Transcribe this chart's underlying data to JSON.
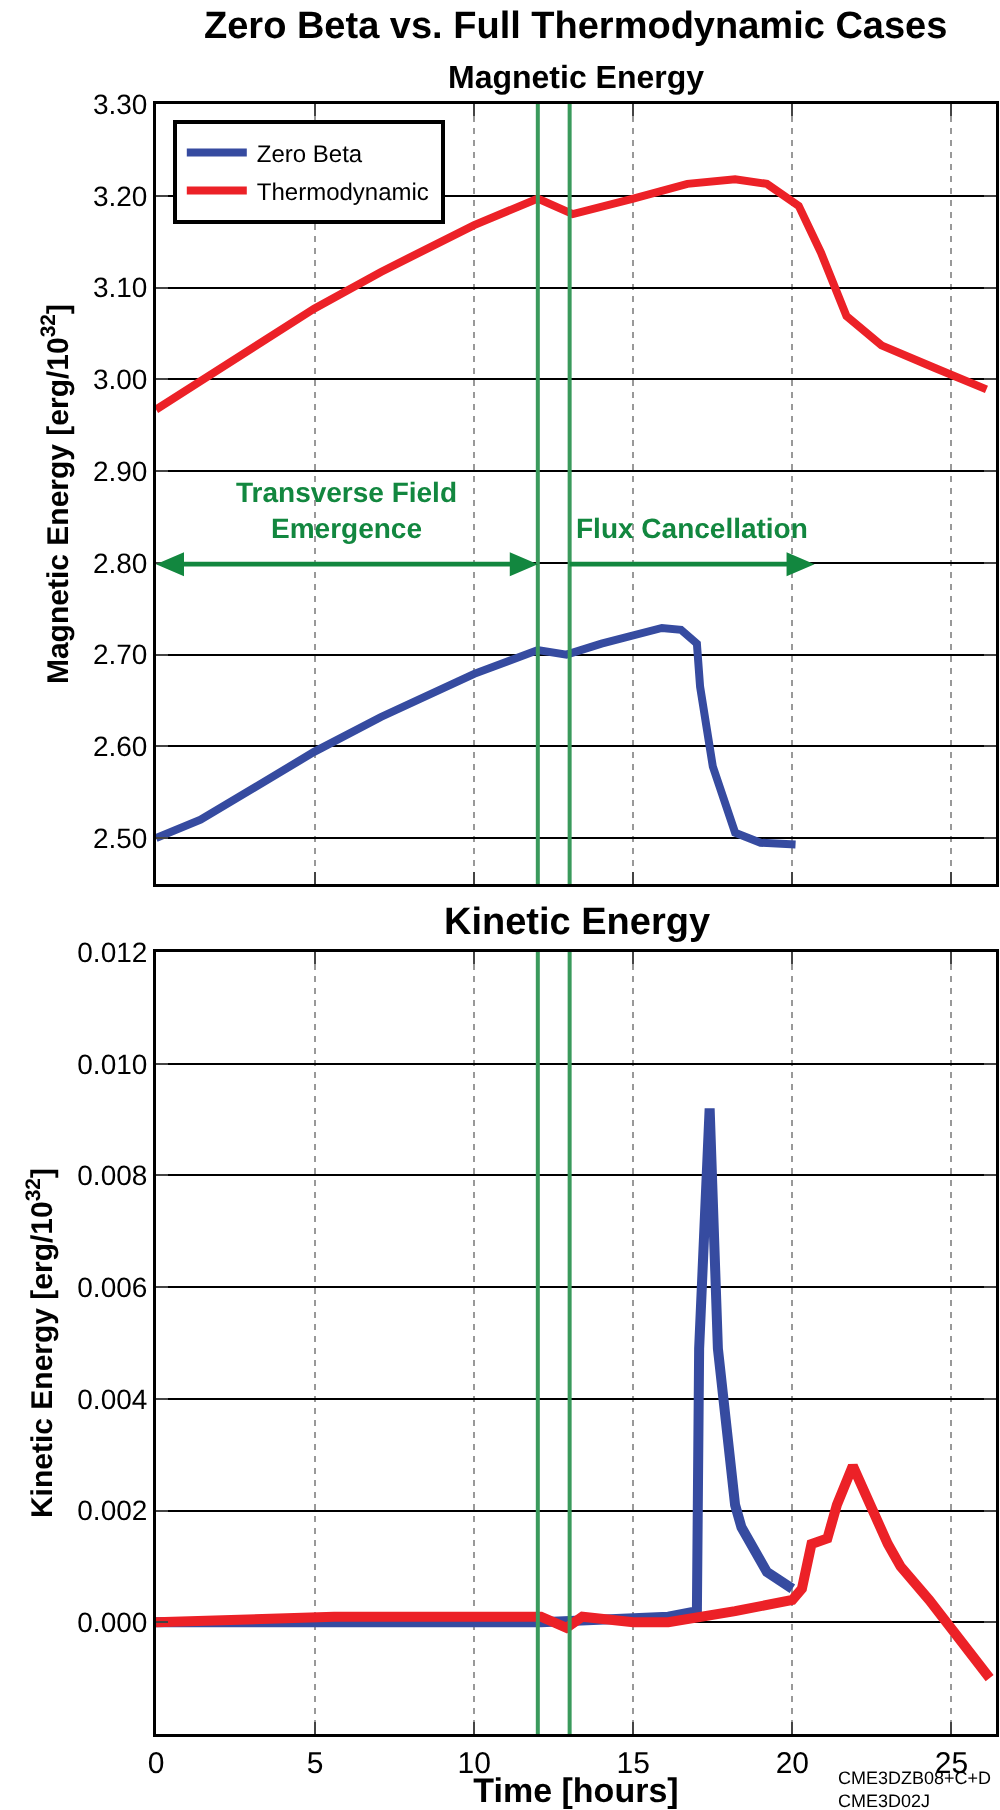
{
  "chart_data": [
    {
      "type": "line",
      "title": "Zero Beta vs. Full Thermodynamic Cases",
      "subtitle": "Magnetic Energy",
      "ylabel": "Magnetic Energy [erg/10$^{32}$]",
      "xlim": [
        0,
        26.4
      ],
      "xticks": [
        0,
        5,
        10,
        15,
        20,
        25
      ],
      "ylim": [
        2.45,
        3.3
      ],
      "yticks": [
        {
          "value": 2.5,
          "label": "2.50"
        },
        {
          "value": 2.6,
          "label": "2.60"
        },
        {
          "value": 2.7,
          "label": "2.70"
        },
        {
          "value": 2.8,
          "label": "2.80"
        },
        {
          "value": 2.9,
          "label": "2.90"
        },
        {
          "value": 3.0,
          "label": "3.00"
        },
        {
          "value": 3.1,
          "label": "3.10"
        },
        {
          "value": 3.2,
          "label": "3.20"
        },
        {
          "value": 3.3,
          "label": "3.30"
        }
      ],
      "tick_labels": "y",
      "grid": true,
      "legend": "top left",
      "ref_lines": [
        {
          "axis": "x",
          "value": 12,
          "color": "#3a9a5c"
        },
        {
          "axis": "x",
          "value": 13,
          "color": "#3a9a5c"
        }
      ],
      "annotations": [
        "Transverse Field Emergence",
        "Flux Cancellation"
      ],
      "series": [
        {
          "name": "Zero Beta",
          "color": "#364ba0",
          "x": [
            0,
            1.4,
            4.97,
            7.07,
            10,
            12,
            12.9,
            14.0,
            15.9,
            16.5,
            17.0,
            17.1,
            17.5,
            18.2,
            19.0,
            20.1
          ],
          "values": [
            2.5,
            2.52,
            2.594,
            2.632,
            2.679,
            2.705,
            2.7,
            2.712,
            2.729,
            2.727,
            2.712,
            2.665,
            2.578,
            2.506,
            2.495,
            2.493
          ]
        },
        {
          "name": "Thermodynamic",
          "color": "#ec2127",
          "x": [
            0,
            1.4,
            4.97,
            7.07,
            10,
            12,
            13.1,
            15.0,
            16.7,
            18.2,
            19.2,
            20.2,
            20.9,
            21.7,
            22.8,
            24.5,
            26.1
          ],
          "values": [
            2.967,
            2.998,
            3.077,
            3.117,
            3.168,
            3.197,
            3.18,
            3.197,
            3.213,
            3.218,
            3.213,
            3.189,
            3.138,
            3.069,
            3.037,
            3.012,
            2.989
          ]
        }
      ]
    },
    {
      "type": "line",
      "title": "Kinetic Energy",
      "xlabel": "Time [hours]",
      "ylabel": "Kinetic Energy [erg/10$^{32}$]",
      "xlim": [
        0,
        26.4
      ],
      "xticks": [
        0,
        5,
        10,
        15,
        20,
        25
      ],
      "ylim": [
        -0.002,
        0.012
      ],
      "yticks": [
        {
          "value": 0,
          "label": "0.000"
        },
        {
          "value": 0.002,
          "label": "0.002"
        },
        {
          "value": 0.004,
          "label": "0.004"
        },
        {
          "value": 0.006,
          "label": "0.006"
        },
        {
          "value": 0.008,
          "label": "0.008"
        },
        {
          "value": 0.01,
          "label": "0.010"
        },
        {
          "value": 0.012,
          "label": "0.012"
        }
      ],
      "grid": true,
      "ref_lines": [
        {
          "axis": "x",
          "value": 12,
          "color": "#3a9a5c"
        },
        {
          "axis": "x",
          "value": 13,
          "color": "#3a9a5c"
        }
      ],
      "annotations": [
        "CME3DZB08+C+D\nCME3D02J"
      ],
      "series": [
        {
          "color": "#364ba0",
          "x": [
            0,
            5.6,
            12.1,
            16.1,
            17.0,
            17.07,
            17.4,
            17.66,
            18.2,
            18.4,
            19.2,
            20.0
          ],
          "values": [
            0,
            0,
            0,
            0.0001,
            0.0002,
            0.0049,
            0.0092,
            0.0049,
            0.0021,
            0.0017,
            0.0009,
            0.0006
          ]
        },
        {
          "color": "#ec2127",
          "x": [
            0,
            5.6,
            7.5,
            9.8,
            12.1,
            12.9,
            13.4,
            15.0,
            16.1,
            18.2,
            20.0,
            20.3,
            20.6,
            21.1,
            21.4,
            21.9,
            23.0,
            23.4,
            24.3,
            26.2
          ],
          "values": [
            0,
            0.0001,
            0.0001,
            0.0001,
            0.0001,
            -0.0001,
            0.0001,
            0,
            0,
            0.0002,
            0.0004,
            0.0006,
            0.0014,
            0.0015,
            0.0021,
            0.0028,
            0.0014,
            0.001,
            0.0004,
            -0.001
          ]
        }
      ]
    }
  ]
}
